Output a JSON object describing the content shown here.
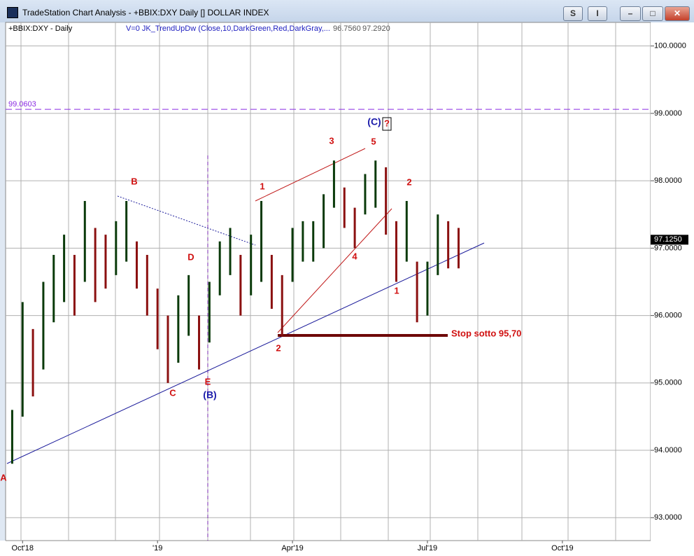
{
  "window_title": "TradeStation Chart Analysis - +BBIX:DXY Daily [] DOLLAR INDEX",
  "buttons": [
    "S",
    "I"
  ],
  "chart_data": {
    "type": "ohlc",
    "symbol_label": "+BBIX:DXY - Daily",
    "indicator_label": "V=0  JK_TrendUpDw (Close,10,DarkGreen,Red,DarkGray,...",
    "indicator_values": [
      {
        "value": 96.756,
        "label": "96.7560"
      },
      {
        "value": 97.292,
        "label": "97.2920"
      }
    ],
    "categories": [
      null,
      "Oct'18",
      null,
      null,
      null,
      null,
      null,
      null,
      null,
      null,
      null,
      null,
      null,
      null,
      "'19",
      null,
      null,
      null,
      null,
      null,
      null,
      null,
      null,
      null,
      null,
      null,
      null,
      "Apr'19",
      null,
      null,
      null,
      null,
      null,
      null,
      null,
      null,
      null,
      null,
      null,
      null,
      "Jul'19",
      null,
      null,
      null,
      null,
      null,
      null,
      null,
      null,
      null,
      null,
      null,
      null,
      "Oct'19",
      null,
      null,
      null,
      null,
      null,
      null,
      null,
      null
    ],
    "series": [
      {
        "name": "High",
        "color": "#0a3a0a",
        "values": [
          94.6,
          96.2,
          95.8,
          96.5,
          96.9,
          97.2,
          96.9,
          97.7,
          97.3,
          97.2,
          97.4,
          97.7,
          97.1,
          96.9,
          96.4,
          96.0,
          96.3,
          96.6,
          96.0,
          96.5,
          97.1,
          97.3,
          96.9,
          97.2,
          97.7,
          96.9,
          96.6,
          97.3,
          97.4,
          97.4,
          97.8,
          98.3,
          97.9,
          97.6,
          98.1,
          98.3,
          98.2,
          97.4,
          97.7,
          96.8,
          96.8,
          97.5,
          97.4,
          97.3,
          null,
          null,
          null,
          null,
          null,
          null,
          null,
          null,
          null,
          null,
          null,
          null,
          null,
          null,
          null,
          null,
          null,
          null
        ]
      },
      {
        "name": "Low",
        "color": "#8b1010",
        "values": [
          93.8,
          94.5,
          94.8,
          95.2,
          95.9,
          96.2,
          96.0,
          96.5,
          96.2,
          96.4,
          96.6,
          96.8,
          96.4,
          96.0,
          95.5,
          95.0,
          95.3,
          95.7,
          95.2,
          95.6,
          96.3,
          96.6,
          96.0,
          96.3,
          96.5,
          96.1,
          95.7,
          96.5,
          96.8,
          96.8,
          97.0,
          97.6,
          97.3,
          97.0,
          97.5,
          97.6,
          97.2,
          96.5,
          96.8,
          95.9,
          96.0,
          96.6,
          96.7,
          96.7,
          null,
          null,
          null,
          null,
          null,
          null,
          null,
          null,
          null,
          null,
          null,
          null,
          null,
          null,
          null,
          null,
          null,
          null
        ]
      }
    ],
    "ylim": [
      92.66,
      100.35
    ],
    "yticks": [
      {
        "value": 93,
        "label": "93.0000"
      },
      {
        "value": 94,
        "label": "94.0000"
      },
      {
        "value": 95,
        "label": "95.0000"
      },
      {
        "value": 96,
        "label": "96.0000"
      },
      {
        "value": 97,
        "label": "97.0000"
      },
      {
        "value": 98,
        "label": "98.0000"
      },
      {
        "value": 99,
        "label": "99.0000"
      },
      {
        "value": 100,
        "label": "100.0000"
      }
    ],
    "grid": true,
    "reference_line": 99.0603,
    "last_price": {
      "value": 97.125,
      "label": "97.1250"
    },
    "annotations": [
      "A",
      "B",
      "C",
      "D",
      "E",
      "(B)",
      "1",
      "2",
      "3",
      "4",
      "5",
      "(C)",
      "?",
      "1",
      "2",
      "Stop sotto 95,70"
    ]
  }
}
